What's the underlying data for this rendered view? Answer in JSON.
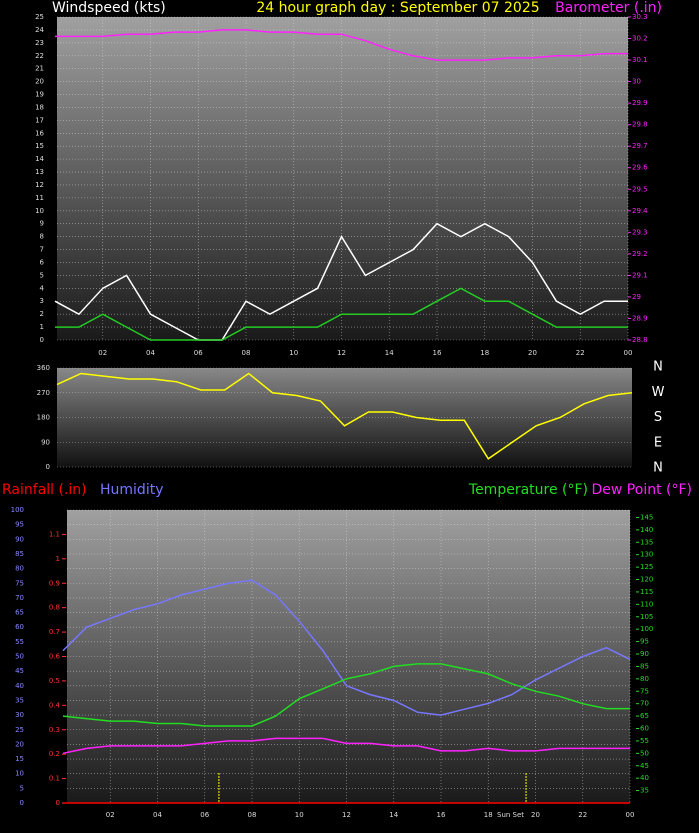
{
  "chart_data": [
    {
      "type": "line",
      "title": "24 hour graph day : September 07 2025",
      "x": [
        0,
        1,
        2,
        3,
        4,
        5,
        6,
        7,
        8,
        9,
        10,
        11,
        12,
        13,
        14,
        15,
        16,
        17,
        18,
        19,
        20,
        21,
        22,
        23,
        24
      ],
      "xlim": [
        0,
        24
      ],
      "xticks": [
        {
          "value": 2,
          "label": "02"
        },
        {
          "value": 4,
          "label": "04"
        },
        {
          "value": 6,
          "label": "06"
        },
        {
          "value": 8,
          "label": "08"
        },
        {
          "value": 10,
          "label": "10"
        },
        12,
        14,
        16,
        18,
        20,
        22,
        {
          "value": 24,
          "label": "00"
        }
      ],
      "ylim": [
        0,
        25
      ],
      "yticks": [
        0,
        1,
        2,
        3,
        4,
        5,
        6,
        7,
        8,
        9,
        10,
        11,
        12,
        13,
        14,
        15,
        16,
        17,
        18,
        19,
        20,
        21,
        22,
        23,
        24,
        25
      ],
      "y2lim": [
        28.8,
        30.3
      ],
      "y2ticks": [
        28.8,
        28.9,
        29,
        29.1,
        29.2,
        29.3,
        29.4,
        29.5,
        29.6,
        29.7,
        29.8,
        29.9,
        30,
        30.1,
        30.2,
        30.3
      ],
      "grid": true,
      "series": [
        {
          "name": "Windspeed (kts)",
          "color": "#ffffff",
          "values": [
            3,
            2,
            4,
            5,
            2,
            1,
            0,
            0,
            3,
            2,
            3,
            4,
            8,
            5,
            6,
            7,
            9,
            8,
            9,
            8,
            6,
            3,
            2,
            3,
            3
          ]
        },
        {
          "color": "#22cc22",
          "values": [
            1,
            1,
            2,
            1,
            0,
            0,
            0,
            0,
            1,
            1,
            1,
            1,
            2,
            2,
            2,
            2,
            3,
            4,
            3,
            3,
            2,
            1,
            1,
            1,
            1
          ]
        },
        {
          "name": "Barometer (.in)",
          "color": "#ff22ff",
          "axis": "y2",
          "values": [
            30.21,
            30.21,
            30.21,
            30.22,
            30.22,
            30.23,
            30.23,
            30.24,
            30.24,
            30.23,
            30.23,
            30.22,
            30.22,
            30.19,
            30.15,
            30.12,
            30.1,
            30.1,
            30.1,
            30.11,
            30.11,
            30.12,
            30.12,
            30.13,
            30.13
          ]
        }
      ]
    },
    {
      "type": "line",
      "x": [
        0,
        1,
        2,
        3,
        4,
        5,
        6,
        7,
        8,
        9,
        10,
        11,
        12,
        13,
        14,
        15,
        16,
        17,
        18,
        19,
        20,
        21,
        22,
        23,
        24
      ],
      "xlim": [
        0,
        24
      ],
      "ylim": [
        0,
        360
      ],
      "yticks": [
        0,
        90,
        180,
        270,
        360
      ],
      "grid": true,
      "compass": [
        "N",
        "W",
        "S",
        "E",
        "N"
      ],
      "series": [
        {
          "color": "#ffff00",
          "values": [
            300,
            340,
            330,
            320,
            320,
            310,
            280,
            280,
            340,
            270,
            260,
            240,
            150,
            200,
            200,
            180,
            170,
            170,
            30,
            90,
            150,
            180,
            230,
            260,
            270
          ]
        }
      ]
    },
    {
      "type": "line",
      "x": [
        0,
        1,
        2,
        3,
        4,
        5,
        6,
        7,
        8,
        9,
        10,
        11,
        12,
        13,
        14,
        15,
        16,
        17,
        18,
        19,
        20,
        21,
        22,
        23,
        24
      ],
      "xlim": [
        0,
        24
      ],
      "xticks": [
        {
          "value": 2,
          "label": "02"
        },
        {
          "value": 4,
          "label": "04"
        },
        {
          "value": 6,
          "label": "06"
        },
        {
          "value": 8,
          "label": "08"
        },
        {
          "value": 10,
          "label": "10"
        },
        12,
        14,
        16,
        18,
        20,
        22,
        {
          "value": 24,
          "label": "00"
        }
      ],
      "ylim": [
        0,
        100
      ],
      "yticks": [
        0,
        5,
        10,
        15,
        20,
        25,
        30,
        35,
        40,
        45,
        50,
        55,
        60,
        65,
        70,
        75,
        80,
        85,
        90,
        95,
        100
      ],
      "y2lim": [
        30,
        148
      ],
      "y2ticks": [
        35,
        40,
        45,
        50,
        55,
        60,
        65,
        70,
        75,
        80,
        85,
        90,
        95,
        100,
        105,
        110,
        115,
        120,
        125,
        130,
        135,
        140,
        145
      ],
      "y3lim": [
        0,
        1.2
      ],
      "y3ticks": [
        0,
        0.1,
        0.2,
        0.3,
        0.4,
        0.5,
        0.6,
        0.7,
        0.8,
        0.9,
        1,
        1.1
      ],
      "grid": true,
      "events": [
        {
          "x": 6.6
        },
        {
          "x": 19.6,
          "label": "Sun Set"
        }
      ],
      "series": [
        {
          "name": "Rainfall (.in)",
          "color": "#ff0000",
          "axis": "y3",
          "values": [
            0,
            0,
            0,
            0,
            0,
            0,
            0,
            0,
            0,
            0,
            0,
            0,
            0,
            0,
            0,
            0,
            0,
            0,
            0,
            0,
            0,
            0,
            0,
            0,
            0
          ]
        },
        {
          "name": "Humidity",
          "color": "#7777ff",
          "values": [
            52,
            60,
            63,
            66,
            68,
            71,
            73,
            75,
            76,
            71,
            62,
            52,
            40,
            37,
            35,
            31,
            30,
            32,
            34,
            37,
            42,
            46,
            50,
            53,
            49
          ]
        },
        {
          "name": "Temperature (°F)",
          "color": "#22dd22",
          "axis": "y2",
          "values": [
            65,
            64,
            63,
            63,
            62,
            62,
            61,
            61,
            61,
            65,
            72,
            76,
            80,
            82,
            85,
            86,
            86,
            84,
            82,
            78,
            75,
            73,
            70,
            68,
            68
          ]
        },
        {
          "name": "Dew Point (°F)",
          "color": "#ff22ff",
          "axis": "y2",
          "values": [
            50,
            52,
            53,
            53,
            53,
            53,
            54,
            55,
            55,
            56,
            56,
            56,
            54,
            54,
            53,
            53,
            51,
            51,
            52,
            51,
            51,
            52,
            52,
            52,
            52
          ]
        }
      ]
    }
  ]
}
